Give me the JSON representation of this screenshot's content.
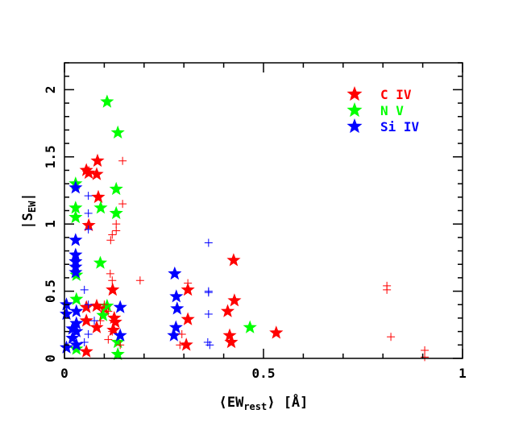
{
  "chart_data": {
    "type": "scatter",
    "title": "",
    "xlabel": "⟨EW",
    "xlabel_sub": "rest",
    "xlabel_suffix": "⟩ [Å]",
    "ylabel": "|S",
    "ylabel_sub": "EW",
    "ylabel_suffix": "|",
    "xlim": [
      0,
      1
    ],
    "ylim": [
      0,
      2.2
    ],
    "xticks": [
      0,
      0.5,
      1
    ],
    "xtick_labels": [
      "0",
      "0.5",
      "1"
    ],
    "yticks": [
      0,
      0.5,
      1,
      1.5,
      2
    ],
    "ytick_labels": [
      "0",
      "0.5",
      "1",
      "1.5",
      "2"
    ],
    "grid": false,
    "legend_position": "top-right",
    "series": [
      {
        "name": "C IV",
        "marker": "star",
        "color": "#ff0000",
        "points": [
          [
            0.055,
            1.4
          ],
          [
            0.083,
            1.47
          ],
          [
            0.061,
            1.38
          ],
          [
            0.081,
            1.37
          ],
          [
            0.085,
            1.2
          ],
          [
            0.061,
            0.99
          ],
          [
            0.121,
            0.51
          ],
          [
            0.055,
            0.38
          ],
          [
            0.081,
            0.39
          ],
          [
            0.1,
            0.37
          ],
          [
            0.055,
            0.28
          ],
          [
            0.081,
            0.23
          ],
          [
            0.128,
            0.27
          ],
          [
            0.123,
            0.21
          ],
          [
            0.125,
            0.3
          ],
          [
            0.055,
            0.05
          ],
          [
            0.31,
            0.51
          ],
          [
            0.425,
            0.73
          ],
          [
            0.427,
            0.43
          ],
          [
            0.41,
            0.35
          ],
          [
            0.31,
            0.29
          ],
          [
            0.306,
            0.1
          ],
          [
            0.415,
            0.17
          ],
          [
            0.419,
            0.12
          ],
          [
            0.532,
            0.19
          ]
        ]
      },
      {
        "name": "N V",
        "marker": "star",
        "color": "#00ff00",
        "points": [
          [
            0.107,
            1.91
          ],
          [
            0.134,
            1.68
          ],
          [
            0.13,
            1.26
          ],
          [
            0.13,
            1.08
          ],
          [
            0.091,
            1.12
          ],
          [
            0.028,
            1.3
          ],
          [
            0.028,
            1.12
          ],
          [
            0.028,
            1.05
          ],
          [
            0.03,
            0.62
          ],
          [
            0.03,
            0.44
          ],
          [
            0.09,
            0.71
          ],
          [
            0.107,
            0.39
          ],
          [
            0.097,
            0.32
          ],
          [
            0.134,
            0.12
          ],
          [
            0.134,
            0.03
          ],
          [
            0.03,
            0.07
          ],
          [
            0.466,
            0.23
          ]
        ]
      },
      {
        "name": "Si IV",
        "marker": "star",
        "color": "#0000ff",
        "points": [
          [
            0.028,
            1.27
          ],
          [
            0.028,
            0.88
          ],
          [
            0.028,
            0.77
          ],
          [
            0.028,
            0.72
          ],
          [
            0.028,
            0.68
          ],
          [
            0.028,
            0.64
          ],
          [
            0.005,
            0.4
          ],
          [
            0.03,
            0.35
          ],
          [
            0.005,
            0.33
          ],
          [
            0.03,
            0.26
          ],
          [
            0.02,
            0.22
          ],
          [
            0.03,
            0.2
          ],
          [
            0.02,
            0.15
          ],
          [
            0.03,
            0.1
          ],
          [
            0.005,
            0.08
          ],
          [
            0.14,
            0.38
          ],
          [
            0.14,
            0.17
          ],
          [
            0.277,
            0.63
          ],
          [
            0.281,
            0.46
          ],
          [
            0.283,
            0.37
          ],
          [
            0.28,
            0.23
          ],
          [
            0.275,
            0.17
          ]
        ]
      },
      {
        "marker": "cross",
        "color": "#ff0000",
        "points": [
          [
            0.146,
            1.47
          ],
          [
            0.146,
            1.15
          ],
          [
            0.13,
            1.0
          ],
          [
            0.13,
            0.95
          ],
          [
            0.12,
            0.92
          ],
          [
            0.116,
            0.88
          ],
          [
            0.115,
            0.63
          ],
          [
            0.12,
            0.58
          ],
          [
            0.19,
            0.58
          ],
          [
            0.1,
            0.4
          ],
          [
            0.11,
            0.35
          ],
          [
            0.09,
            0.28
          ],
          [
            0.12,
            0.2
          ],
          [
            0.11,
            0.14
          ],
          [
            0.14,
            0.1
          ],
          [
            0.31,
            0.56
          ],
          [
            0.295,
            0.18
          ],
          [
            0.29,
            0.1
          ],
          [
            0.81,
            0.54
          ],
          [
            0.81,
            0.51
          ],
          [
            0.82,
            0.16
          ],
          [
            0.905,
            0.06
          ],
          [
            0.905,
            0.01
          ]
        ]
      },
      {
        "marker": "cross",
        "color": "#0000ff",
        "points": [
          [
            0.06,
            1.21
          ],
          [
            0.06,
            1.08
          ],
          [
            0.06,
            0.96
          ],
          [
            0.05,
            0.51
          ],
          [
            0.06,
            0.4
          ],
          [
            0.075,
            0.28
          ],
          [
            0.06,
            0.18
          ],
          [
            0.05,
            0.12
          ],
          [
            0.362,
            0.86
          ],
          [
            0.362,
            0.5
          ],
          [
            0.362,
            0.49
          ],
          [
            0.362,
            0.33
          ],
          [
            0.36,
            0.12
          ],
          [
            0.365,
            0.1
          ]
        ]
      }
    ]
  }
}
